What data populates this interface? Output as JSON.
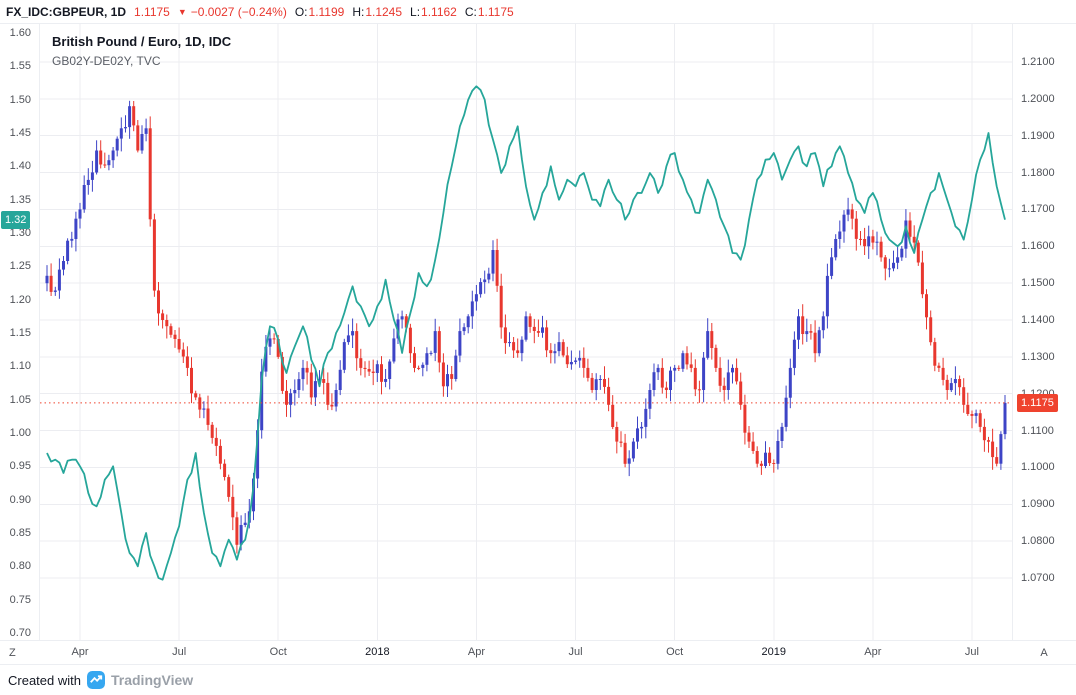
{
  "top_bar": {
    "symbol": "FX_IDC:GBPEUR, 1D",
    "last_price": "1.1175",
    "direction_icon": "▼",
    "change": "−0.0027 (−0.24%)",
    "ohlc": [
      {
        "label": "O:",
        "value": "1.1199"
      },
      {
        "label": "H:",
        "value": "1.1245"
      },
      {
        "label": "L:",
        "value": "1.1162"
      },
      {
        "label": "C:",
        "value": "1.1175"
      }
    ]
  },
  "legend": {
    "line1": "British Pound / Euro, 1D, IDC",
    "line2": "GB02Y-DE02Y, TVC"
  },
  "axes": {
    "left_ticks": [
      "1.60",
      "1.55",
      "1.50",
      "1.45",
      "1.40",
      "1.35",
      "1.30",
      "1.25",
      "1.20",
      "1.15",
      "1.10",
      "1.05",
      "1.00",
      "0.95",
      "0.90",
      "0.85",
      "0.80",
      "0.75",
      "0.70"
    ],
    "right_ticks": [
      "1.2100",
      "1.2000",
      "1.1900",
      "1.1800",
      "1.1700",
      "1.1600",
      "1.1500",
      "1.1400",
      "1.1300",
      "1.1200",
      "1.1100",
      "1.1000",
      "1.0900",
      "1.0800",
      "1.0700"
    ],
    "time_ticks": [
      {
        "label": "Apr",
        "week": 4,
        "year": false
      },
      {
        "label": "Jul",
        "week": 16,
        "year": false
      },
      {
        "label": "Oct",
        "week": 28,
        "year": false
      },
      {
        "label": "2018",
        "week": 40,
        "year": true
      },
      {
        "label": "Apr",
        "week": 52,
        "year": false
      },
      {
        "label": "Jul",
        "week": 64,
        "year": false
      },
      {
        "label": "Oct",
        "week": 76,
        "year": false
      },
      {
        "label": "2019",
        "week": 88,
        "year": true
      },
      {
        "label": "Apr",
        "week": 100,
        "year": false
      },
      {
        "label": "Jul",
        "week": 112,
        "year": false
      }
    ],
    "left_badge": "1.32",
    "right_badge": "1.1175",
    "left_corner": "Z",
    "right_corner": "A"
  },
  "footer": {
    "created_with": "Created with",
    "brand": "TradingView"
  },
  "colors": {
    "up_candle": "#3d44c6",
    "down_candle": "#e8372e",
    "spread_line": "#26a69a",
    "last_price": "#ef432e",
    "grid": "#ecedf1",
    "logo_blue": "#36a7f0"
  },
  "chart_data": {
    "type": "mixed",
    "title": "British Pound / Euro, 1D, IDC",
    "subtitle": "GB02Y-DE02Y, TVC",
    "x_axis": {
      "unit": "weekly samples",
      "start": "Mar 2017",
      "end": "Aug 2019",
      "tick_labels": [
        "Apr",
        "Jul",
        "Oct",
        "2018",
        "Apr",
        "Jul",
        "Oct",
        "2019",
        "Apr",
        "Jul"
      ]
    },
    "right_axis": {
      "label": "GBPEUR price",
      "range": [
        1.07,
        1.21
      ],
      "tick_step": 0.01
    },
    "left_axis": {
      "label": "GB02Y-DE02Y yield spread",
      "range": [
        0.7,
        1.6
      ],
      "tick_step": 0.05
    },
    "last_price": 1.1175,
    "last_spread": 1.32,
    "ohlc_today": {
      "open": 1.1199,
      "high": 1.1245,
      "low": 1.1162,
      "close": 1.1175,
      "change": -0.0027,
      "change_pct": -0.24
    },
    "grid": true,
    "legend_position": "top-left",
    "series": [
      {
        "name": "British Pound / Euro (FX_IDC:GBPEUR)",
        "type": "candlestick",
        "axis": "right",
        "closes": [
          1.152,
          1.148,
          1.156,
          1.162,
          1.17,
          1.178,
          1.186,
          1.182,
          1.186,
          1.192,
          1.198,
          1.186,
          1.192,
          1.148,
          1.14,
          1.136,
          1.132,
          1.127,
          1.119,
          1.116,
          1.108,
          1.101,
          1.092,
          1.079,
          1.085,
          1.097,
          1.126,
          1.135,
          1.13,
          1.117,
          1.121,
          1.127,
          1.119,
          1.124,
          1.117,
          1.121,
          1.134,
          1.137,
          1.127,
          1.126,
          1.128,
          1.124,
          1.135,
          1.141,
          1.131,
          1.127,
          1.131,
          1.137,
          1.122,
          1.124,
          1.137,
          1.141,
          1.147,
          1.151,
          1.159,
          1.138,
          1.134,
          1.131,
          1.141,
          1.137,
          1.138,
          1.131,
          1.134,
          1.128,
          1.129,
          1.127,
          1.121,
          1.124,
          1.117,
          1.107,
          1.101,
          1.107,
          1.111,
          1.121,
          1.127,
          1.121,
          1.127,
          1.131,
          1.127,
          1.121,
          1.137,
          1.127,
          1.121,
          1.127,
          1.117,
          1.107,
          1.101,
          1.104,
          1.101,
          1.111,
          1.127,
          1.141,
          1.137,
          1.131,
          1.141,
          1.157,
          1.164,
          1.17,
          1.162,
          1.16,
          1.161,
          1.157,
          1.154,
          1.157,
          1.167,
          1.161,
          1.147,
          1.134,
          1.127,
          1.121,
          1.124,
          1.117,
          1.114,
          1.111,
          1.107,
          1.101,
          1.1175
        ]
      },
      {
        "name": "GB02Y-DE02Y (TVC)",
        "type": "line",
        "axis": "left",
        "values": [
          0.97,
          0.96,
          0.94,
          0.96,
          0.95,
          0.91,
          0.89,
          0.93,
          0.95,
          0.88,
          0.82,
          0.8,
          0.85,
          0.8,
          0.78,
          0.82,
          0.86,
          0.93,
          0.97,
          0.88,
          0.82,
          0.8,
          0.84,
          0.81,
          0.84,
          0.92,
          1.08,
          1.16,
          1.14,
          1.09,
          1.13,
          1.16,
          1.11,
          1.07,
          1.12,
          1.15,
          1.18,
          1.22,
          1.19,
          1.16,
          1.19,
          1.23,
          1.17,
          1.12,
          1.18,
          1.24,
          1.22,
          1.26,
          1.33,
          1.4,
          1.46,
          1.5,
          1.52,
          1.5,
          1.44,
          1.39,
          1.43,
          1.46,
          1.37,
          1.32,
          1.36,
          1.4,
          1.35,
          1.38,
          1.37,
          1.39,
          1.35,
          1.34,
          1.38,
          1.35,
          1.32,
          1.35,
          1.36,
          1.39,
          1.36,
          1.4,
          1.42,
          1.38,
          1.35,
          1.33,
          1.38,
          1.35,
          1.31,
          1.27,
          1.26,
          1.32,
          1.38,
          1.41,
          1.42,
          1.38,
          1.41,
          1.43,
          1.4,
          1.42,
          1.37,
          1.4,
          1.43,
          1.39,
          1.35,
          1.33,
          1.36,
          1.32,
          1.29,
          1.28,
          1.31,
          1.27,
          1.32,
          1.36,
          1.39,
          1.35,
          1.31,
          1.29,
          1.35,
          1.41,
          1.45,
          1.37,
          1.32
        ]
      }
    ]
  }
}
